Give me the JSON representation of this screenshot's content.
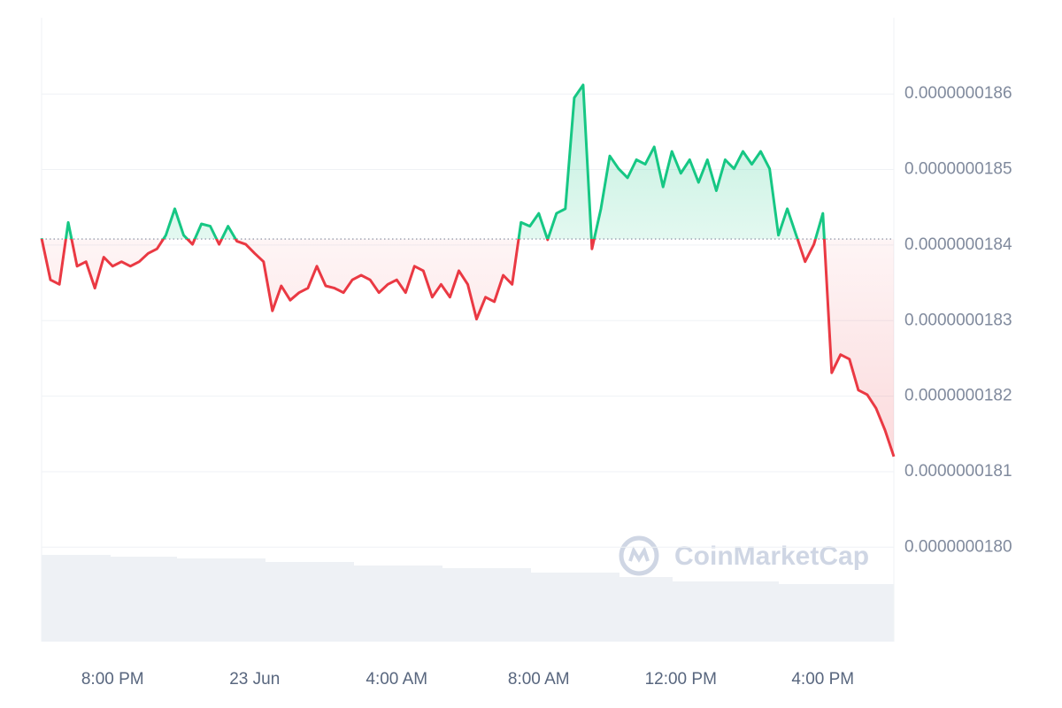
{
  "chart_data": {
    "type": "line",
    "watermark": "CoinMarketCap",
    "baseline": 1.8408e-08,
    "up_color": "#16c784",
    "down_color": "#ea3943",
    "ylim": [
      1.7875e-08,
      1.8701e-08
    ],
    "yticks": [
      {
        "value": 1.8e-08,
        "label": "0.0000000180"
      },
      {
        "value": 1.81e-08,
        "label": "0.0000000181"
      },
      {
        "value": 1.82e-08,
        "label": "0.0000000182"
      },
      {
        "value": 1.83e-08,
        "label": "0.0000000183"
      },
      {
        "value": 1.84e-08,
        "label": "0.0000000184"
      },
      {
        "value": 1.85e-08,
        "label": "0.0000000185"
      },
      {
        "value": 1.86e-08,
        "label": "0.0000000186"
      }
    ],
    "xlim": [
      0,
      96
    ],
    "xticks": [
      {
        "value": 8,
        "label": "8:00 PM"
      },
      {
        "value": 24,
        "label": "23 Jun"
      },
      {
        "value": 40,
        "label": "4:00 AM"
      },
      {
        "value": 56,
        "label": "8:00 AM"
      },
      {
        "value": 72,
        "label": "12:00 PM"
      },
      {
        "value": 88,
        "label": "4:00 PM"
      }
    ],
    "grid": true,
    "values": [
      1.8409e-08,
      1.8354e-08,
      1.8348e-08,
      1.843e-08,
      1.8372e-08,
      1.8378e-08,
      1.8343e-08,
      1.8384e-08,
      1.8372e-08,
      1.8378e-08,
      1.8372e-08,
      1.8378e-08,
      1.8389e-08,
      1.8395e-08,
      1.8413e-08,
      1.8448e-08,
      1.8413e-08,
      1.8401e-08,
      1.8428e-08,
      1.8425e-08,
      1.8401e-08,
      1.8425e-08,
      1.8405e-08,
      1.8401e-08,
      1.8389e-08,
      1.8378e-08,
      1.8313e-08,
      1.8346e-08,
      1.8327e-08,
      1.8337e-08,
      1.8343e-08,
      1.8372e-08,
      1.8346e-08,
      1.8343e-08,
      1.8337e-08,
      1.8354e-08,
      1.836e-08,
      1.8354e-08,
      1.8337e-08,
      1.8348e-08,
      1.8354e-08,
      1.8337e-08,
      1.8372e-08,
      1.8366e-08,
      1.8331e-08,
      1.8348e-08,
      1.8331e-08,
      1.8366e-08,
      1.8348e-08,
      1.8302e-08,
      1.8331e-08,
      1.8325e-08,
      1.836e-08,
      1.8348e-08,
      1.843e-08,
      1.8425e-08,
      1.8442e-08,
      1.8407e-08,
      1.8442e-08,
      1.8448e-08,
      1.8595e-08,
      1.8612e-08,
      1.8395e-08,
      1.8448e-08,
      1.8518e-08,
      1.8501e-08,
      1.8489e-08,
      1.8513e-08,
      1.8507e-08,
      1.853e-08,
      1.8477e-08,
      1.8524e-08,
      1.8495e-08,
      1.8513e-08,
      1.8483e-08,
      1.8513e-08,
      1.8472e-08,
      1.8513e-08,
      1.8501e-08,
      1.8524e-08,
      1.8507e-08,
      1.8524e-08,
      1.8501e-08,
      1.8413e-08,
      1.8448e-08,
      1.8413e-08,
      1.8378e-08,
      1.8401e-08,
      1.8442e-08,
      1.8231e-08,
      1.8255e-08,
      1.8249e-08,
      1.8208e-08,
      1.8202e-08,
      1.8184e-08,
      1.8155e-08,
      1.812e-08
    ]
  }
}
